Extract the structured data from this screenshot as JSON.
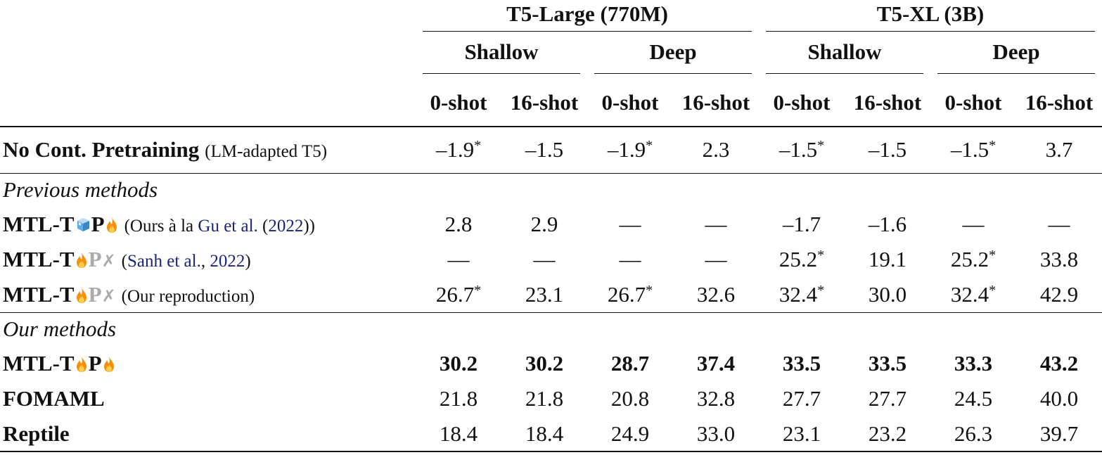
{
  "table": {
    "header": {
      "models": [
        "T5-Large (770M)",
        "T5-XL (3B)"
      ],
      "variants": [
        "Shallow",
        "Deep",
        "Shallow",
        "Deep"
      ],
      "shots": [
        "0-shot",
        "16-shot",
        "0-shot",
        "16-shot",
        "0-shot",
        "16-shot",
        "0-shot",
        "16-shot"
      ]
    },
    "sections": [
      {
        "rows": [
          {
            "name": [
              "No Cont. Pretraining"
            ],
            "note": [
              "(LM-adapted T5)"
            ],
            "cells": [
              {
                "text": "–1.9",
                "sup": "*"
              },
              "–1.5",
              {
                "text": "–1.9",
                "sup": "*"
              },
              "2.3",
              {
                "text": "–1.5",
                "sup": "*"
              },
              "–1.5",
              {
                "text": "–1.5",
                "sup": "*"
              },
              "3.7"
            ]
          }
        ]
      },
      {
        "title": "Previous methods",
        "rows": [
          {
            "name": [
              "MTL-T",
              "P"
            ],
            "note": [
              "(Ours à la ",
              "Gu et al.",
              " (",
              "2022",
              "))"
            ],
            "cells": [
              "2.8",
              "2.9",
              "—",
              "—",
              "–1.7",
              "–1.6",
              "—",
              "—"
            ]
          },
          {
            "name": [
              "MTL-T",
              "P",
              "✗"
            ],
            "note": [
              "(",
              "Sanh et al.",
              ", ",
              "2022",
              ")"
            ],
            "cells": [
              "—",
              "—",
              "—",
              "—",
              {
                "text": "25.2",
                "sup": "*"
              },
              "19.1",
              {
                "text": "25.2",
                "sup": "*"
              },
              "33.8"
            ]
          },
          {
            "name": [
              "MTL-T",
              "P",
              "✗"
            ],
            "note": [
              "(Our reproduction)"
            ],
            "cells": [
              {
                "text": "26.7",
                "sup": "*"
              },
              "23.1",
              {
                "text": "26.7",
                "sup": "*"
              },
              "32.6",
              {
                "text": "32.4",
                "sup": "*"
              },
              "30.0",
              {
                "text": "32.4",
                "sup": "*"
              },
              "42.9"
            ]
          }
        ]
      },
      {
        "title": "Our methods",
        "rows": [
          {
            "name": [
              "MTL-T",
              "P"
            ],
            "cells": [
              "30.2",
              "30.2",
              "28.7",
              "37.4",
              "33.5",
              "33.5",
              "33.3",
              "43.2"
            ]
          },
          {
            "name": [
              "FOMAML"
            ],
            "cells": [
              "21.8",
              "21.8",
              "20.8",
              "32.8",
              "27.7",
              "27.7",
              "24.5",
              "40.0"
            ]
          },
          {
            "name": [
              "Reptile"
            ],
            "cells": [
              "18.4",
              "18.4",
              "24.9",
              "33.0",
              "23.1",
              "23.2",
              "26.3",
              "39.7"
            ]
          }
        ]
      }
    ]
  }
}
